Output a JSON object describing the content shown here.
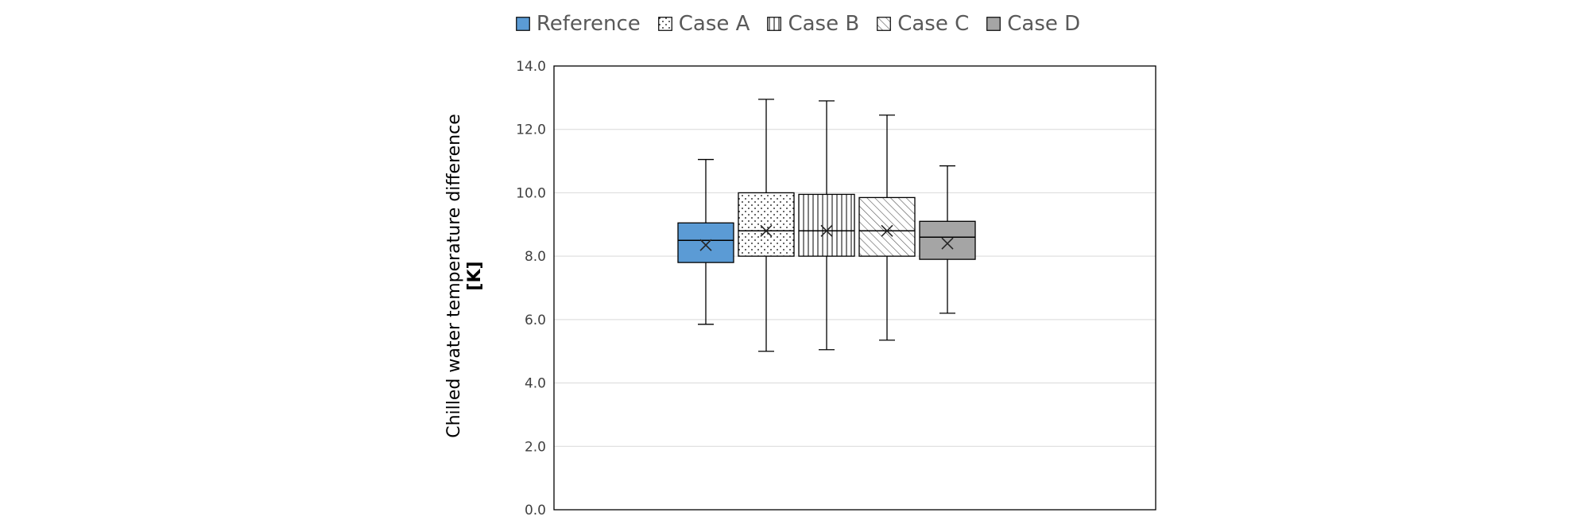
{
  "chart_data": {
    "type": "box",
    "title": "",
    "xlabel": "",
    "ylabel": [
      "Chilled water temperature difference",
      "[K]"
    ],
    "ylim": [
      0,
      14
    ],
    "yticks": [
      "0.0",
      "2.0",
      "4.0",
      "6.0",
      "8.0",
      "10.0",
      "12.0",
      "14.0"
    ],
    "grid": "horizontal",
    "legend_position": "top-center",
    "series": [
      {
        "name": "Reference",
        "pattern": "solid",
        "color": "#5b9bd5",
        "min": 5.85,
        "q1": 7.8,
        "median": 8.5,
        "q3": 9.05,
        "max": 11.05,
        "mean": 8.35
      },
      {
        "name": "Case A",
        "pattern": "dots",
        "color": "#ffffff",
        "min": 5.0,
        "q1": 8.0,
        "median": 8.8,
        "q3": 10.0,
        "max": 12.95,
        "mean": 8.8
      },
      {
        "name": "Case B",
        "pattern": "vertical",
        "color": "#ffffff",
        "min": 5.05,
        "q1": 8.0,
        "median": 8.8,
        "q3": 9.95,
        "max": 12.9,
        "mean": 8.8
      },
      {
        "name": "Case C",
        "pattern": "diagonal",
        "color": "#ffffff",
        "min": 5.35,
        "q1": 8.0,
        "median": 8.8,
        "q3": 9.85,
        "max": 12.45,
        "mean": 8.8
      },
      {
        "name": "Case D",
        "pattern": "solid",
        "color": "#a5a5a5",
        "min": 6.2,
        "q1": 7.9,
        "median": 8.6,
        "q3": 9.1,
        "max": 10.85,
        "mean": 8.4
      }
    ]
  }
}
